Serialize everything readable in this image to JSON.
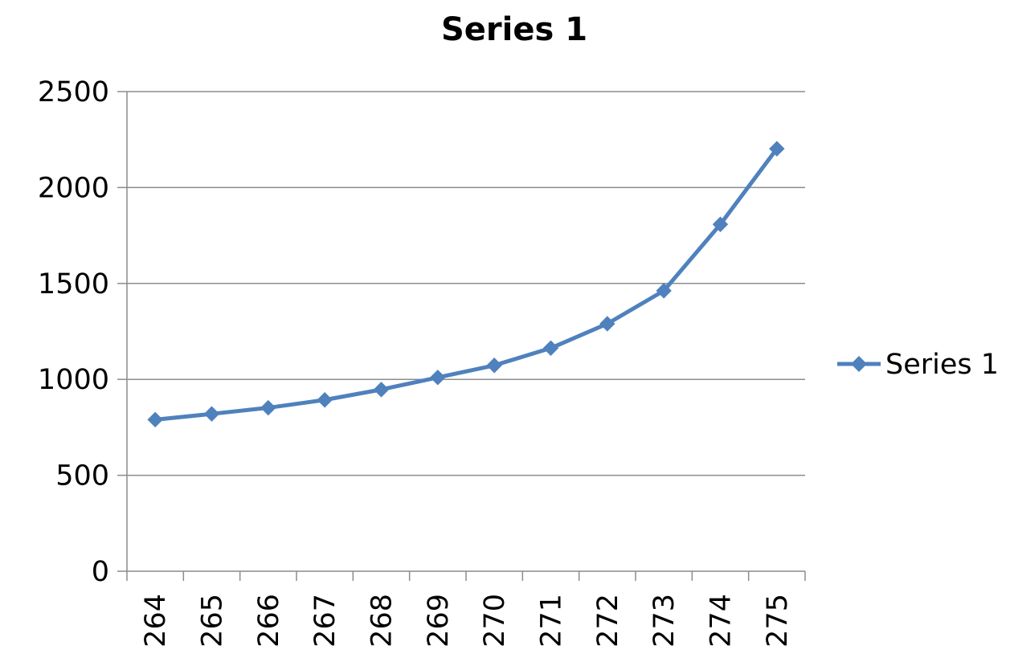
{
  "chart_data": {
    "type": "line",
    "title": "Series 1",
    "xlabel": "",
    "ylabel": "",
    "categories": [
      "264",
      "265",
      "266",
      "267",
      "268",
      "269",
      "270",
      "271",
      "272",
      "273",
      "274",
      "275"
    ],
    "series": [
      {
        "name": "Series 1",
        "values": [
          790,
          820,
          852,
          893,
          947,
          1010,
          1073,
          1163,
          1290,
          1462,
          1808,
          2202
        ],
        "color": "#4f81bd",
        "marker": "diamond"
      }
    ],
    "ylim": [
      0,
      2500
    ],
    "yticks": [
      "0",
      "500",
      "1000",
      "1500",
      "2000",
      "2500"
    ],
    "grid": "horizontal",
    "legend_position": "right"
  }
}
